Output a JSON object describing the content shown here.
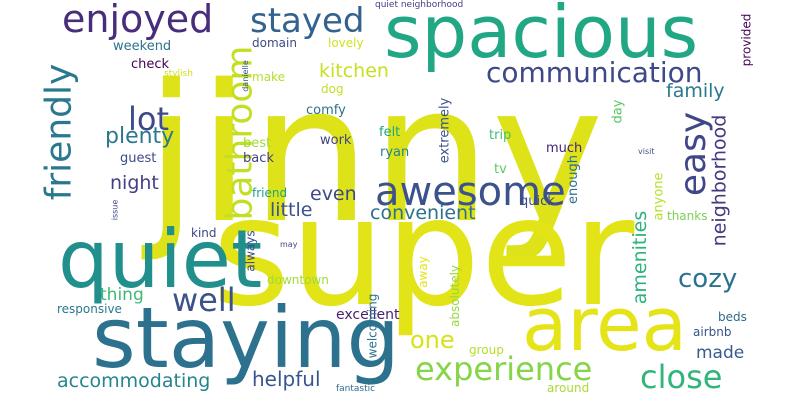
{
  "words": [
    {
      "text": "jinny",
      "color": "#dde318"
    },
    {
      "text": "super",
      "color": "#e2e418"
    },
    {
      "text": "spacious",
      "color": "#22a785"
    },
    {
      "text": "staying",
      "color": "#2c728e"
    },
    {
      "text": "quiet",
      "color": "#21908d"
    },
    {
      "text": "area",
      "color": "#e5e419"
    },
    {
      "text": "awesome",
      "color": "#3b528b"
    },
    {
      "text": "enjoyed",
      "color": "#472d7b"
    },
    {
      "text": "stayed",
      "color": "#33638d"
    },
    {
      "text": "friendly",
      "color": "#2a788e"
    },
    {
      "text": "bathroom",
      "color": "#c2df23"
    },
    {
      "text": "easy",
      "color": "#404688"
    },
    {
      "text": "communication",
      "color": "#3e4989"
    },
    {
      "text": "well",
      "color": "#3b528b"
    },
    {
      "text": "experience",
      "color": "#86d549"
    },
    {
      "text": "close",
      "color": "#31b57b"
    },
    {
      "text": "lot",
      "color": "#3e4989"
    },
    {
      "text": "cozy",
      "color": "#2c728e"
    },
    {
      "text": "plenty",
      "color": "#2a788e"
    },
    {
      "text": "convenient",
      "color": "#2d708e"
    },
    {
      "text": "helpful",
      "color": "#39568c"
    },
    {
      "text": "one",
      "color": "#d8e219"
    },
    {
      "text": "accommodating",
      "color": "#25858e"
    },
    {
      "text": "night",
      "color": "#433e85"
    },
    {
      "text": "little",
      "color": "#3b528b"
    },
    {
      "text": "even",
      "color": "#3e4989"
    },
    {
      "text": "kitchen",
      "color": "#c8e020"
    },
    {
      "text": "family",
      "color": "#2a788e"
    },
    {
      "text": "neighborhood",
      "color": "#443983"
    },
    {
      "text": "amenities",
      "color": "#2db27d"
    },
    {
      "text": "thing",
      "color": "#3bbb75"
    },
    {
      "text": "made",
      "color": "#375b8d"
    },
    {
      "text": "excellent",
      "color": "#481f70"
    },
    {
      "text": "weekend",
      "color": "#2c728e"
    },
    {
      "text": "check",
      "color": "#440154"
    },
    {
      "text": "domain",
      "color": "#3e4989"
    },
    {
      "text": "lovely",
      "color": "#d2e21b"
    },
    {
      "text": "make",
      "color": "#b5de2b"
    },
    {
      "text": "dog",
      "color": "#bddf26"
    },
    {
      "text": "comfy",
      "color": "#2c728e"
    },
    {
      "text": "best",
      "color": "#a2da37"
    },
    {
      "text": "back",
      "color": "#424086"
    },
    {
      "text": "guest",
      "color": "#3e4989"
    },
    {
      "text": "work",
      "color": "#414487"
    },
    {
      "text": "felt",
      "color": "#20a386"
    },
    {
      "text": "ryan",
      "color": "#26828e"
    },
    {
      "text": "trip",
      "color": "#44bf70"
    },
    {
      "text": "much",
      "color": "#482374"
    },
    {
      "text": "tv",
      "color": "#5ec962"
    },
    {
      "text": "extremely",
      "color": "#3b528b"
    },
    {
      "text": "quick",
      "color": "#3e4989"
    },
    {
      "text": "enough",
      "color": "#2d708e"
    },
    {
      "text": "day",
      "color": "#58c765"
    },
    {
      "text": "anyone",
      "color": "#b5de2b"
    },
    {
      "text": "thanks",
      "color": "#7ad151"
    },
    {
      "text": "provided",
      "color": "#440154"
    },
    {
      "text": "friend",
      "color": "#1fa188"
    },
    {
      "text": "kind",
      "color": "#3e4989"
    },
    {
      "text": "always",
      "color": "#3e4989"
    },
    {
      "text": "downtown",
      "color": "#a2da37"
    },
    {
      "text": "welcoming",
      "color": "#2c728e"
    },
    {
      "text": "absolutely",
      "color": "#95d840"
    },
    {
      "text": "away",
      "color": "#e5e419"
    },
    {
      "text": "responsive",
      "color": "#2a788e"
    },
    {
      "text": "group",
      "color": "#b5de2b"
    },
    {
      "text": "airbnb",
      "color": "#3b528b"
    },
    {
      "text": "beds",
      "color": "#31688e"
    },
    {
      "text": "around",
      "color": "#a8db34"
    },
    {
      "text": "fantastic",
      "color": "#31688e"
    },
    {
      "text": "quiet neighborhood",
      "color": "#433e85"
    },
    {
      "text": "stylish",
      "color": "#d0e11c"
    },
    {
      "text": "danielle",
      "color": "#3b528b"
    },
    {
      "text": "issue",
      "color": "#404688"
    },
    {
      "text": "visit",
      "color": "#3b528b"
    },
    {
      "text": "may",
      "color": "#404688"
    }
  ]
}
